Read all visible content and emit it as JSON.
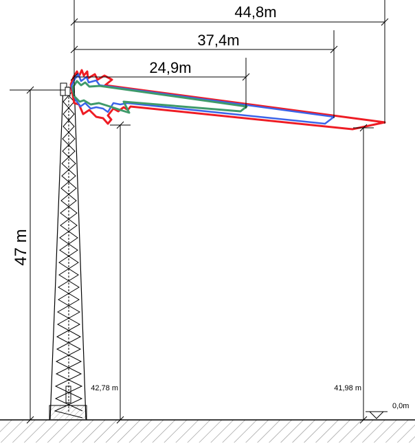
{
  "dimensions": {
    "top": "44,8m",
    "mid": "37,4m",
    "low": "24,9m",
    "tower_height": "47 m",
    "left_height": "42,78 m",
    "right_height": "41,98 m",
    "ground_level": "0,0m"
  },
  "colors": {
    "red_lobe": "#ee1c24",
    "blue_lobe": "#3b63e8",
    "green_lobe": "#3f9a6a",
    "lines": "#000000",
    "hatch": "#8a8a8a"
  },
  "icons": {
    "ground_marker": "triangle-down-icon"
  }
}
